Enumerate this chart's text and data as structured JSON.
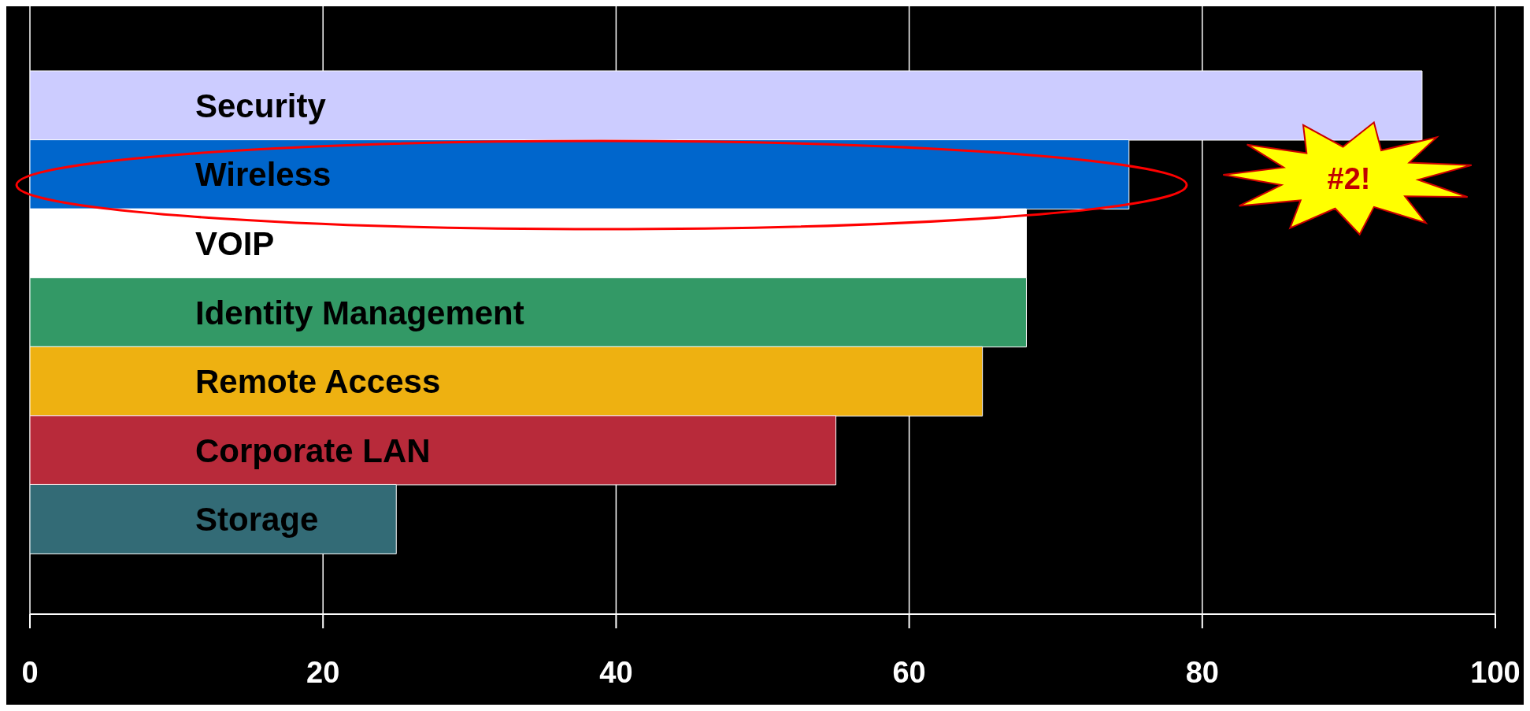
{
  "chart_data": {
    "type": "bar",
    "orientation": "horizontal",
    "categories": [
      "Security",
      "Wireless",
      "VOIP",
      "Identity Management",
      "Remote Access",
      "Corporate LAN",
      "Storage"
    ],
    "values": [
      95,
      75,
      68,
      68,
      65,
      55,
      25
    ],
    "colors": [
      "#ccccff",
      "#0066cc",
      "#ffffff",
      "#339966",
      "#eeb111",
      "#b82a3a",
      "#336b76"
    ],
    "xlim": [
      0,
      100
    ],
    "xticks": [
      0,
      20,
      40,
      60,
      80,
      100
    ],
    "grid": "x",
    "annotations": [
      "#2!"
    ]
  }
}
